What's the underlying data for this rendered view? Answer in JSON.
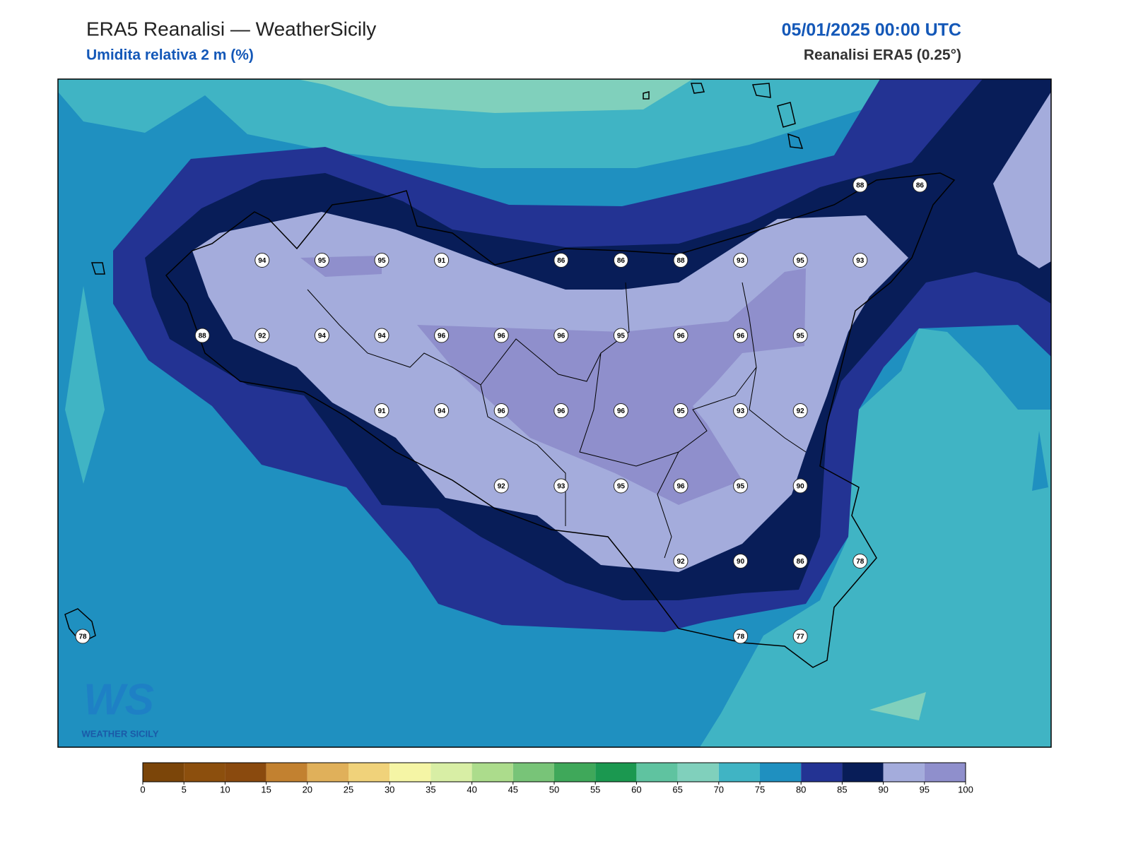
{
  "header": {
    "title": "ERA5 Reanalisi — WeatherSicily",
    "subtitle": "Umidita relativa 2 m (%)",
    "datetime": "05/01/2025 00:00 UTC",
    "source": "Reanalisi ERA5 (0.25°)"
  },
  "logo": {
    "mark": "WS",
    "name": "Weather Sicily"
  },
  "stations": {
    "rows": [
      [
        null,
        null,
        null,
        null,
        null,
        null,
        null,
        null,
        null,
        null,
        null,
        null,
        null,
        88,
        86
      ],
      [
        null,
        null,
        null,
        94,
        95,
        95,
        91,
        null,
        86,
        86,
        88,
        93,
        95,
        93,
        null
      ],
      [
        null,
        null,
        88,
        92,
        94,
        94,
        96,
        96,
        96,
        95,
        96,
        96,
        95,
        null,
        null
      ],
      [
        null,
        null,
        null,
        null,
        null,
        91,
        94,
        96,
        96,
        96,
        95,
        93,
        92,
        null,
        null
      ],
      [
        null,
        null,
        null,
        null,
        null,
        null,
        null,
        92,
        93,
        95,
        96,
        95,
        90,
        null,
        null
      ],
      [
        null,
        null,
        null,
        null,
        null,
        null,
        null,
        null,
        null,
        null,
        92,
        90,
        86,
        78,
        null
      ],
      [
        78,
        null,
        null,
        null,
        null,
        null,
        null,
        null,
        null,
        null,
        null,
        78,
        77,
        null,
        null
      ]
    ]
  },
  "colorbar": {
    "ticks": [
      0,
      5,
      10,
      15,
      20,
      25,
      30,
      35,
      40,
      45,
      50,
      55,
      60,
      65,
      70,
      75,
      80,
      85,
      90,
      95,
      100
    ],
    "colors": [
      "#7b4509",
      "#8c4f0d",
      "#8a4a0e",
      "#c28130",
      "#e0b05a",
      "#f0d27a",
      "#f5f5a5",
      "#d8eea5",
      "#acdc8c",
      "#78c478",
      "#3fa85a",
      "#1b9850",
      "#5fc3a0",
      "#80d0bc",
      "#40b4c4",
      "#1f90c0",
      "#233393",
      "#081d58",
      "#a4acdc",
      "#8f8fcc"
    ]
  }
}
